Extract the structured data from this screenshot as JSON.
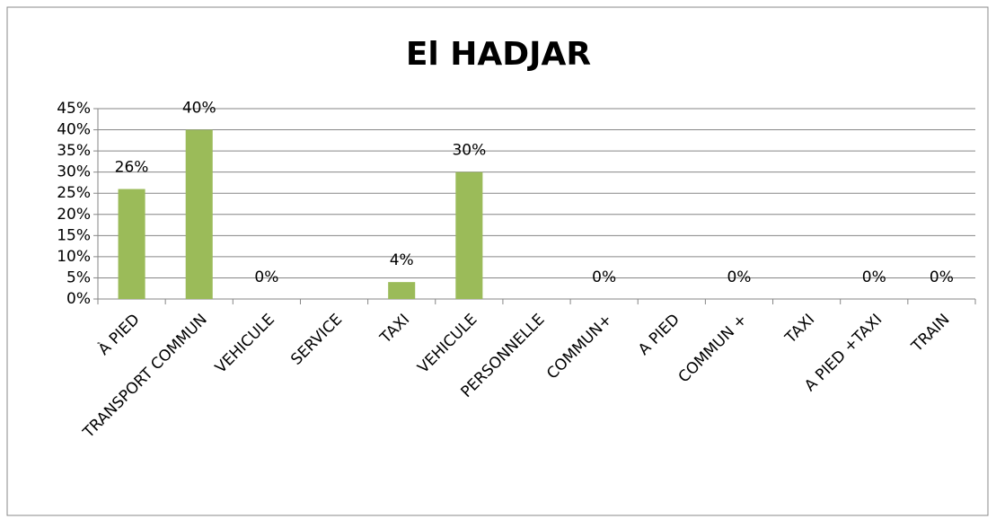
{
  "chart_data": {
    "type": "bar",
    "title": "El HADJAR",
    "categories": [
      "À PIED",
      "TRANSPORT COMMUN",
      "VEHICULE",
      "SERVICE",
      "TAXI",
      "VEHICULE",
      "PERSONNELLE",
      "COMMUN+",
      "A PIED",
      "COMMUN +",
      "TAXI",
      "A PIED +TAXI",
      "TRAIN"
    ],
    "values": [
      26,
      40,
      0,
      null,
      4,
      30,
      null,
      0,
      null,
      0,
      null,
      0,
      0
    ],
    "value_labels": [
      "26%",
      "40%",
      "0%",
      null,
      "4%",
      "30%",
      null,
      "0%",
      null,
      "0%",
      null,
      "0%",
      "0%"
    ],
    "color": "#9bbb59",
    "ylim": [
      0,
      45
    ],
    "yticks": [
      {
        "value": 0,
        "label": "0%"
      },
      {
        "value": 5,
        "label": "5%"
      },
      {
        "value": 10,
        "label": "10%"
      },
      {
        "value": 15,
        "label": "15%"
      },
      {
        "value": 20,
        "label": "20%"
      },
      {
        "value": 25,
        "label": "25%"
      },
      {
        "value": 30,
        "label": "30%"
      },
      {
        "value": 35,
        "label": "35%"
      },
      {
        "value": 40,
        "label": "40%"
      },
      {
        "value": 45,
        "label": "45%"
      }
    ],
    "grid": true
  }
}
